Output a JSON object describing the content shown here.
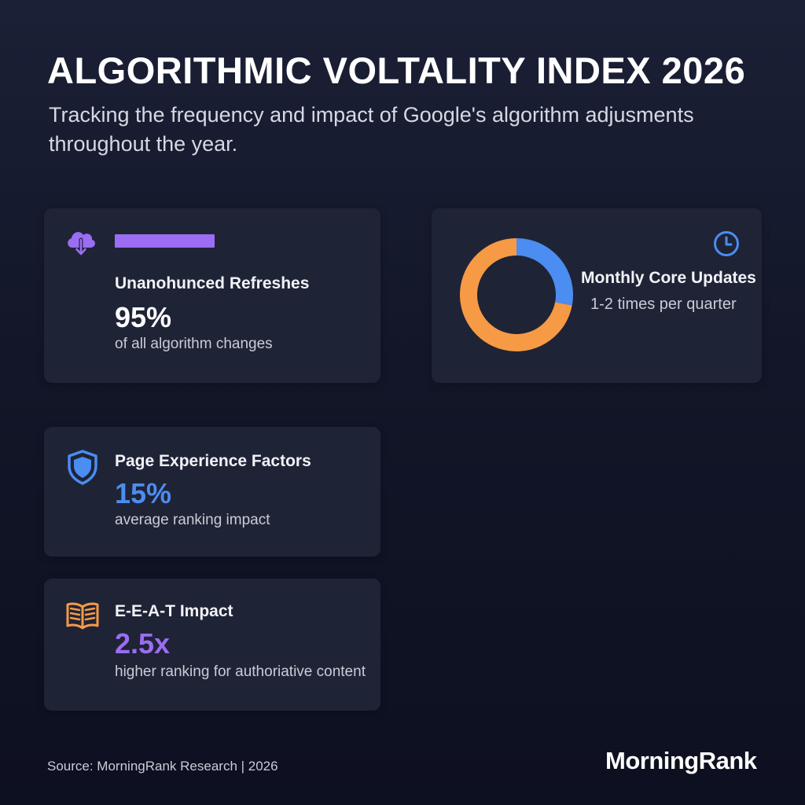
{
  "header": {
    "title": "ALGORITHMIC VOLTALITY INDEX 2026",
    "subtitle": "Tracking the frequency and impact of Google's algorithm adjusments throughout the year."
  },
  "cards": {
    "refreshes": {
      "label": "Unanohunced Refreshes",
      "value": "95%",
      "desc": "of all algorithm changes",
      "icon": "cloud-download-icon",
      "color": "#9b6df2"
    },
    "core": {
      "label": "Monthly Core Updates",
      "desc": "1-2 times per quarter",
      "icon": "clock-icon",
      "donut": {
        "orange_share": 0.72,
        "blue_share": 0.28,
        "orange": "#f79a45",
        "blue": "#4b8df0"
      }
    },
    "page_experience": {
      "label": "Page Experience Factors",
      "value": "15%",
      "desc": "average ranking impact",
      "icon": "shield-icon",
      "color": "#4b8df0"
    },
    "eeat": {
      "label": "E-E-A-T Impact",
      "value": "2.5x",
      "desc": "higher ranking for authoriative content",
      "icon": "book-icon",
      "color": "#9b6df2"
    }
  },
  "footer": {
    "source": "Source: MorningRank Research | 2026",
    "brand": "MorningRank"
  }
}
